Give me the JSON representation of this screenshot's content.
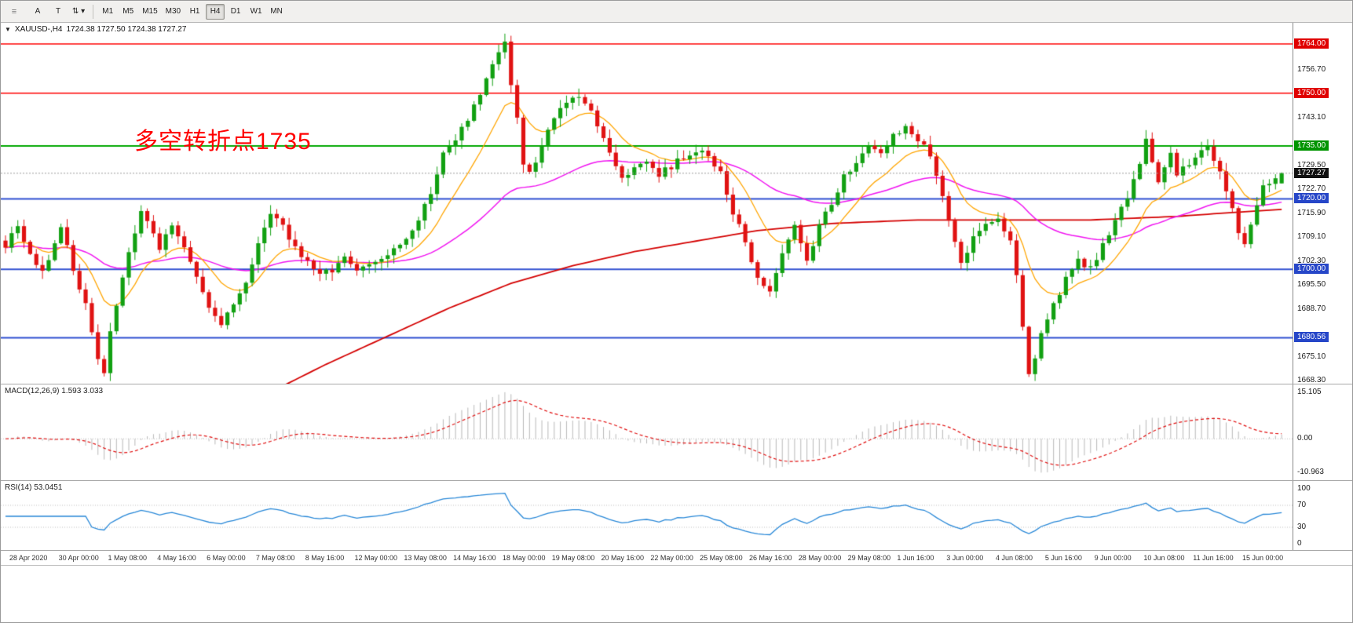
{
  "colors": {
    "up": "#12a012",
    "down": "#e01212",
    "wick_up": "#0c7a0c",
    "wick_down": "#b00d0d",
    "current_badge": "#111111",
    "current_line": "#9a9a9a",
    "macd_hist": "#b8b8b8",
    "macd_signal": "#e01010",
    "rsi_line": "#2787d7",
    "level_dotted": "#bdbdbd"
  },
  "toolbar": {
    "tools": [
      {
        "name": "toolbar-grip-icon",
        "glyph": "≡"
      },
      {
        "name": "arrow-style-tool",
        "label": "A"
      },
      {
        "name": "text-tool",
        "label": "T"
      },
      {
        "name": "arrows-objects-tool",
        "glyph": "⇅",
        "chevron": "▾"
      }
    ],
    "timeframes": [
      {
        "label": "M1",
        "active": false
      },
      {
        "label": "M5",
        "active": false
      },
      {
        "label": "M15",
        "active": false
      },
      {
        "label": "M30",
        "active": false
      },
      {
        "label": "H1",
        "active": false
      },
      {
        "label": "H4",
        "active": true
      },
      {
        "label": "D1",
        "active": false
      },
      {
        "label": "W1",
        "active": false
      },
      {
        "label": "MN",
        "active": false
      }
    ]
  },
  "header": {
    "collapse_icon": "▼",
    "symbol_text": "XAUUSD-,H4",
    "ohlc_text": "1724.38 1727.50 1724.38 1727.27"
  },
  "annotation": {
    "text": "多空转折点1735",
    "color": "#ff0000"
  },
  "panes": {
    "macd_label": "MACD(12,26,9) 1.593 3.033",
    "rsi_label": "RSI(14) 53.0451"
  },
  "chart_data": {
    "type": "candlestick",
    "symbol": "XAUUSD-",
    "timeframe": "H4",
    "bars": 208,
    "ylim": [
      1667.5,
      1770
    ],
    "last_ohlc": {
      "open": 1724.38,
      "high": 1727.5,
      "low": 1724.38,
      "close": 1727.27
    },
    "close_anchors": [
      [
        0,
        1707
      ],
      [
        2,
        1712
      ],
      [
        4,
        1704
      ],
      [
        6,
        1699
      ],
      [
        8,
        1708
      ],
      [
        9,
        1712
      ],
      [
        11,
        1700
      ],
      [
        13,
        1690
      ],
      [
        15,
        1674
      ],
      [
        16,
        1671
      ],
      [
        17,
        1682
      ],
      [
        19,
        1698
      ],
      [
        21,
        1710
      ],
      [
        22,
        1716
      ],
      [
        24,
        1710
      ],
      [
        25,
        1706
      ],
      [
        27,
        1713
      ],
      [
        29,
        1706
      ],
      [
        31,
        1697
      ],
      [
        33,
        1689
      ],
      [
        35,
        1684
      ],
      [
        37,
        1690
      ],
      [
        39,
        1697
      ],
      [
        41,
        1707
      ],
      [
        43,
        1715
      ],
      [
        45,
        1712
      ],
      [
        47,
        1706
      ],
      [
        49,
        1702
      ],
      [
        51,
        1698
      ],
      [
        53,
        1700
      ],
      [
        55,
        1704
      ],
      [
        57,
        1699
      ],
      [
        59,
        1701
      ],
      [
        61,
        1703
      ],
      [
        63,
        1705
      ],
      [
        65,
        1709
      ],
      [
        67,
        1714
      ],
      [
        69,
        1722
      ],
      [
        71,
        1733
      ],
      [
        73,
        1737
      ],
      [
        75,
        1743
      ],
      [
        77,
        1750
      ],
      [
        79,
        1758
      ],
      [
        81,
        1764
      ],
      [
        82,
        1753
      ],
      [
        83,
        1743
      ],
      [
        84,
        1730
      ],
      [
        85,
        1727
      ],
      [
        86,
        1731
      ],
      [
        87,
        1736
      ],
      [
        89,
        1743
      ],
      [
        91,
        1747
      ],
      [
        93,
        1749
      ],
      [
        95,
        1745
      ],
      [
        97,
        1737
      ],
      [
        99,
        1730
      ],
      [
        100,
        1726
      ],
      [
        102,
        1729
      ],
      [
        104,
        1731
      ],
      [
        106,
        1727
      ],
      [
        108,
        1729
      ],
      [
        110,
        1732
      ],
      [
        112,
        1734
      ],
      [
        114,
        1732
      ],
      [
        116,
        1727
      ],
      [
        118,
        1716
      ],
      [
        120,
        1708
      ],
      [
        122,
        1698
      ],
      [
        124,
        1694
      ],
      [
        126,
        1704
      ],
      [
        128,
        1712
      ],
      [
        130,
        1703
      ],
      [
        132,
        1712
      ],
      [
        134,
        1719
      ],
      [
        136,
        1726
      ],
      [
        138,
        1731
      ],
      [
        140,
        1736
      ],
      [
        142,
        1733
      ],
      [
        144,
        1738
      ],
      [
        146,
        1740
      ],
      [
        148,
        1737
      ],
      [
        150,
        1733
      ],
      [
        152,
        1721
      ],
      [
        154,
        1707
      ],
      [
        155,
        1701
      ],
      [
        157,
        1709
      ],
      [
        159,
        1713
      ],
      [
        161,
        1715
      ],
      [
        163,
        1708
      ],
      [
        164,
        1698
      ],
      [
        165,
        1683
      ],
      [
        166,
        1671
      ],
      [
        167,
        1675
      ],
      [
        168,
        1681
      ],
      [
        170,
        1690
      ],
      [
        172,
        1697
      ],
      [
        174,
        1702
      ],
      [
        176,
        1700
      ],
      [
        178,
        1707
      ],
      [
        180,
        1714
      ],
      [
        182,
        1720
      ],
      [
        184,
        1730
      ],
      [
        185,
        1737
      ],
      [
        186,
        1730
      ],
      [
        187,
        1725
      ],
      [
        188,
        1729
      ],
      [
        189,
        1733
      ],
      [
        190,
        1727
      ],
      [
        191,
        1729
      ],
      [
        193,
        1731
      ],
      [
        195,
        1735
      ],
      [
        197,
        1727
      ],
      [
        199,
        1718
      ],
      [
        200,
        1710
      ],
      [
        201,
        1708
      ],
      [
        202,
        1713
      ],
      [
        203,
        1718
      ],
      [
        204,
        1723
      ],
      [
        205,
        1725
      ],
      [
        207,
        1727.3
      ]
    ],
    "ma_slow_anchors": [
      [
        36,
        1650
      ],
      [
        44,
        1666
      ],
      [
        52,
        1673
      ],
      [
        62,
        1681
      ],
      [
        72,
        1689
      ],
      [
        82,
        1696
      ],
      [
        92,
        1701
      ],
      [
        102,
        1705
      ],
      [
        112,
        1708
      ],
      [
        122,
        1711
      ],
      [
        134,
        1713
      ],
      [
        148,
        1714
      ],
      [
        162,
        1714
      ],
      [
        176,
        1714
      ],
      [
        190,
        1715
      ],
      [
        198,
        1716
      ],
      [
        207,
        1717
      ]
    ],
    "moving_averages": [
      {
        "name": "ema-fast",
        "period": 12,
        "color": "#ffa500",
        "width": 1.3
      },
      {
        "name": "ema-mid",
        "period": 50,
        "color": "#f014f0",
        "width": 1.5
      },
      {
        "name": "ma-slow",
        "from_anchors": true,
        "color": "#d40000",
        "width": 1.8
      }
    ],
    "horizontal_lines": [
      {
        "value": 1764.0,
        "label": "1764.00",
        "line_color": "#ff0000",
        "badge_color": "#e00000",
        "width": 1.5
      },
      {
        "value": 1750.0,
        "label": "1750.00",
        "line_color": "#ff0000",
        "badge_color": "#e00000",
        "width": 1.5
      },
      {
        "value": 1735.0,
        "label": "1735.00",
        "line_color": "#00a800",
        "badge_color": "#009400",
        "width": 2
      },
      {
        "value": 1720.0,
        "label": "1720.00",
        "line_color": "#2f4fd0",
        "badge_color": "#2646c8",
        "width": 2
      },
      {
        "value": 1700.0,
        "label": "1700.00",
        "line_color": "#2f4fd0",
        "badge_color": "#2646c8",
        "width": 2
      },
      {
        "value": 1680.56,
        "label": "1680.56",
        "line_color": "#2f4fd0",
        "badge_color": "#2646c8",
        "width": 2
      }
    ],
    "current_price": {
      "value": 1727.27,
      "label": "1727.27"
    },
    "price_ticks": [
      {
        "value": 1756.7,
        "label": "1756.70"
      },
      {
        "value": 1743.1,
        "label": "1743.10"
      },
      {
        "value": 1729.5,
        "label": "1729.50"
      },
      {
        "value": 1722.7,
        "label": "1722.70"
      },
      {
        "value": 1715.9,
        "label": "1715.90"
      },
      {
        "value": 1709.1,
        "label": "1709.10"
      },
      {
        "value": 1702.3,
        "label": "1702.30"
      },
      {
        "value": 1695.5,
        "label": "1695.50"
      },
      {
        "value": 1688.7,
        "label": "1688.70"
      },
      {
        "value": 1675.1,
        "label": "1675.10"
      },
      {
        "value": 1668.3,
        "label": "1668.30"
      }
    ],
    "time_labels": [
      "28 Apr 2020",
      "30 Apr 00:00",
      "1 May 08:00",
      "4 May 16:00",
      "6 May 00:00",
      "7 May 08:00",
      "8 May 16:00",
      "12 May 00:00",
      "13 May 08:00",
      "14 May 16:00",
      "18 May 00:00",
      "19 May 08:00",
      "20 May 16:00",
      "22 May 00:00",
      "25 May 08:00",
      "26 May 16:00",
      "28 May 00:00",
      "29 May 08:00",
      "1 Jun 16:00",
      "3 Jun 00:00",
      "4 Jun 08:00",
      "5 Jun 16:00",
      "9 Jun 00:00",
      "10 Jun 08:00",
      "11 Jun 16:00",
      "15 Jun 00:00"
    ],
    "macd": {
      "fast": 12,
      "slow": 26,
      "signal": 9,
      "value": 1.593,
      "signal_value": 3.033,
      "pos_max": 15.105,
      "neg_min": -10.963,
      "ylim": [
        -12.4,
        16.6
      ],
      "scale": [
        {
          "value": 15.105,
          "label": "15.105"
        },
        {
          "value": 0,
          "label": "0.00"
        },
        {
          "value": -10.963,
          "label": "-10.963"
        }
      ]
    },
    "rsi": {
      "period": 14,
      "value": 53.0451,
      "levels": [
        70,
        30
      ],
      "ylim": [
        0,
        100
      ],
      "scale": [
        {
          "value": 100,
          "label": "100"
        },
        {
          "value": 70,
          "label": "70"
        },
        {
          "value": 30,
          "label": "30"
        },
        {
          "value": 0,
          "label": "0"
        }
      ]
    }
  }
}
